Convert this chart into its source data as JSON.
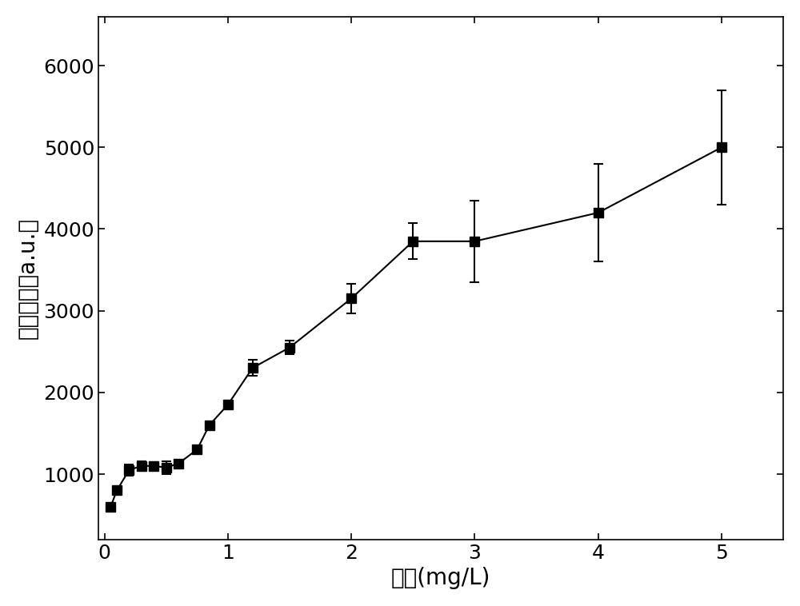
{
  "x": [
    0.05,
    0.1,
    0.2,
    0.3,
    0.4,
    0.5,
    0.6,
    0.75,
    0.85,
    1.0,
    1.2,
    1.5,
    2.0,
    2.5,
    3.0,
    4.0,
    5.0
  ],
  "y": [
    600,
    800,
    1050,
    1100,
    1100,
    1080,
    1130,
    1300,
    1600,
    1850,
    2300,
    2550,
    3150,
    3850,
    3850,
    4200,
    5000
  ],
  "yerr": [
    0,
    0,
    70,
    60,
    50,
    80,
    0,
    0,
    0,
    0,
    100,
    80,
    180,
    220,
    500,
    600,
    700
  ],
  "xlabel": "浓度(mg/L)",
  "ylabel": "拉曼强度（a.u.）",
  "xlim": [
    -0.05,
    5.5
  ],
  "ylim": [
    200,
    6600
  ],
  "yticks": [
    1000,
    2000,
    3000,
    4000,
    5000,
    6000
  ],
  "xticks": [
    0,
    1,
    2,
    3,
    4,
    5
  ],
  "marker": "s",
  "markersize": 8,
  "line_color": "#000000",
  "marker_color": "#000000",
  "xlabel_fontsize": 20,
  "ylabel_fontsize": 20,
  "tick_fontsize": 18,
  "background_color": "#ffffff",
  "capsize": 4
}
